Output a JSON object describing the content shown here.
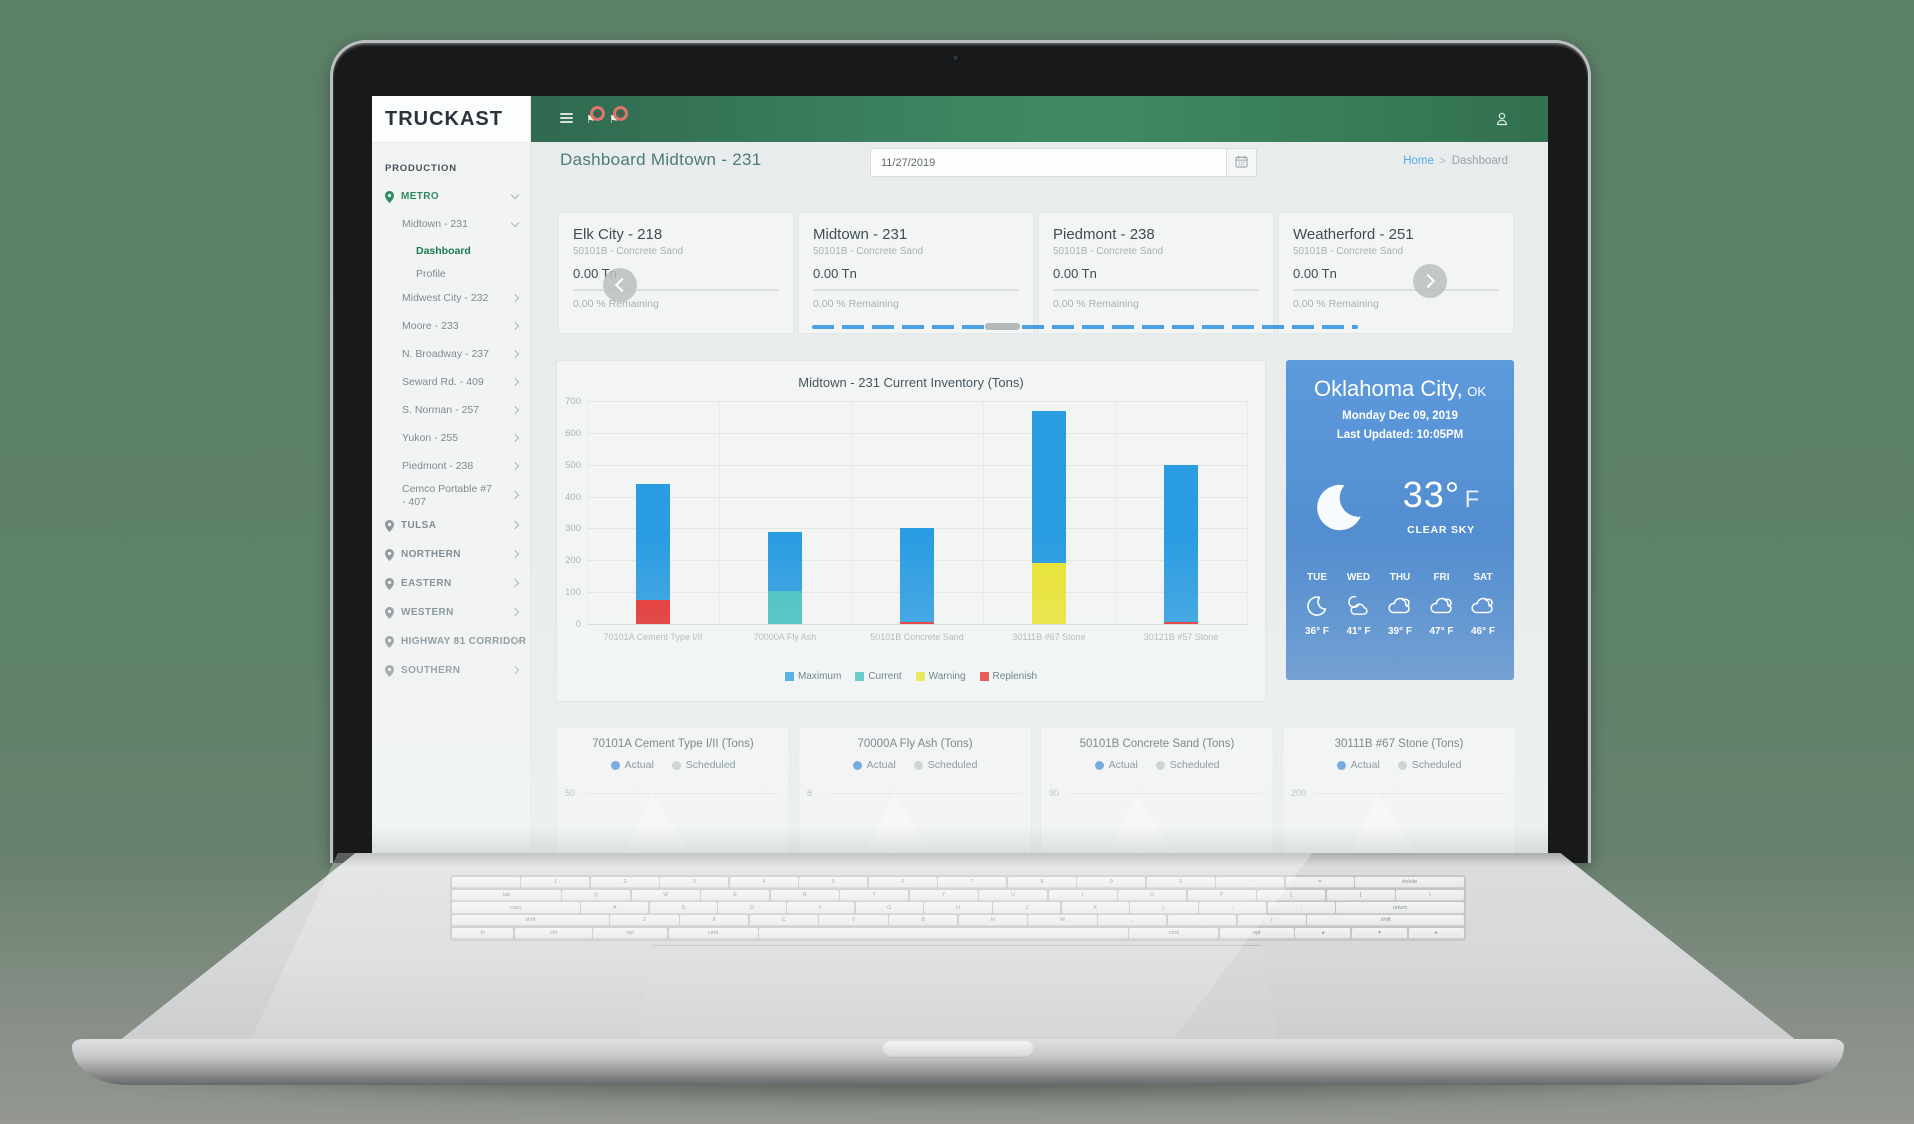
{
  "branding": {
    "logo": "TRUCKAST"
  },
  "header": {
    "menu_icon": "hamburger-icon",
    "badge_icons": [
      "flag-badge-icon",
      "flag-badge-icon"
    ],
    "user_icon": "user-icon"
  },
  "icons": {
    "hamburger": "≡",
    "flag": "⚑",
    "user": "👤",
    "calendar": "▦",
    "location_pin": "📍",
    "chevron_right": "›",
    "chevron_down": "⌄",
    "moon": "☾",
    "cloud": "☁"
  },
  "sidebar": {
    "section_label": "PRODUCTION",
    "items": [
      {
        "label": "METRO",
        "type": "region",
        "chevron": "down",
        "active": true
      },
      {
        "label": "Midtown - 231",
        "type": "site",
        "chevron": "down",
        "active": false
      },
      {
        "label": "Dashboard",
        "type": "subitem",
        "active": true
      },
      {
        "label": "Profile",
        "type": "subitem",
        "active": false
      },
      {
        "label": "Midwest City - 232",
        "type": "site",
        "chevron": "right",
        "active": false
      },
      {
        "label": "Moore - 233",
        "type": "site",
        "chevron": "right",
        "active": false
      },
      {
        "label": "N. Broadway - 237",
        "type": "site",
        "chevron": "right",
        "active": false
      },
      {
        "label": "Seward Rd. - 409",
        "type": "site",
        "chevron": "right",
        "active": false
      },
      {
        "label": "S. Norman - 257",
        "type": "site",
        "chevron": "right",
        "active": false
      },
      {
        "label": "Yukon - 255",
        "type": "site",
        "chevron": "right",
        "active": false
      },
      {
        "label": "Piedmont - 238",
        "type": "site",
        "chevron": "right",
        "active": false
      },
      {
        "label": "Cemco Portable #7 - 407",
        "type": "site",
        "chevron": "right",
        "active": false
      },
      {
        "label": "TULSA",
        "type": "region",
        "chevron": "right",
        "active": false
      },
      {
        "label": "NORTHERN",
        "type": "region",
        "chevron": "right",
        "active": false
      },
      {
        "label": "EASTERN",
        "type": "region",
        "chevron": "right",
        "active": false
      },
      {
        "label": "WESTERN",
        "type": "region",
        "chevron": "right",
        "active": false
      },
      {
        "label": "HIGHWAY 81 CORRIDOR",
        "type": "region",
        "chevron": "right",
        "active": false
      },
      {
        "label": "SOUTHERN",
        "type": "region",
        "chevron": "right",
        "active": false
      }
    ]
  },
  "page": {
    "title": "Dashboard Midtown - 231",
    "date_value": "11/27/2019",
    "breadcrumb": {
      "home": "Home",
      "separator": ">",
      "current": "Dashboard"
    }
  },
  "cards": [
    {
      "title": "Elk City - 218",
      "subtitle": "50101B - Concrete Sand",
      "amount": "0.00 Tn",
      "remaining": "0.00 % Remaining"
    },
    {
      "title": "Midtown - 231",
      "subtitle": "50101B - Concrete Sand",
      "amount": "0.00 Tn",
      "remaining": "0.00 % Remaining"
    },
    {
      "title": "Piedmont - 238",
      "subtitle": "50101B - Concrete Sand",
      "amount": "0.00 Tn",
      "remaining": "0.00 % Remaining"
    },
    {
      "title": "Weatherford - 251",
      "subtitle": "50101B - Concrete Sand",
      "amount": "0.00 Tn",
      "remaining": "0.00 % Remaining"
    }
  ],
  "chart_data": [
    {
      "type": "bar",
      "stacked": true,
      "title": "Midtown - 231 Current Inventory (Tons)",
      "categories": [
        "70101A Cement Type I/II",
        "70000A Fly Ash",
        "50101B Concrete Sand",
        "30111B #67 Stone",
        "30121B #57 Stone"
      ],
      "series": [
        {
          "name": "Maximum",
          "color": "#2a9ce1",
          "values": [
            365,
            185,
            295,
            480,
            495
          ]
        },
        {
          "name": "Current",
          "color": "#43bfc1",
          "values": [
            0,
            105,
            0,
            0,
            0
          ]
        },
        {
          "name": "Warning",
          "color": "#e8e334",
          "values": [
            0,
            0,
            0,
            190,
            0
          ]
        },
        {
          "name": "Replenish",
          "color": "#e12e2c",
          "values": [
            75,
            0,
            5,
            0,
            5
          ]
        }
      ],
      "bar_totals": [
        440,
        290,
        300,
        670,
        500
      ],
      "ylim": [
        0,
        700
      ],
      "yticks": [
        0,
        100,
        200,
        300,
        400,
        500,
        600,
        700
      ],
      "grid": true,
      "legend_position": "bottom"
    },
    {
      "type": "area",
      "title": "70101A Cement Type I/II (Tons)",
      "visible_ytick": "50",
      "series": [
        {
          "name": "Actual",
          "color": "#2d7fd3"
        },
        {
          "name": "Scheduled",
          "color": "#b7c1c5"
        }
      ]
    },
    {
      "type": "area",
      "title": "70000A Fly Ash (Tons)",
      "visible_ytick": "8",
      "series": [
        {
          "name": "Actual",
          "color": "#2d7fd3"
        },
        {
          "name": "Scheduled",
          "color": "#b7c1c5"
        }
      ]
    },
    {
      "type": "area",
      "title": "50101B Concrete Sand (Tons)",
      "visible_ytick": "90",
      "series": [
        {
          "name": "Actual",
          "color": "#2d7fd3"
        },
        {
          "name": "Scheduled",
          "color": "#b7c1c5"
        }
      ]
    },
    {
      "type": "area",
      "title": "30111B #67 Stone (Tons)",
      "visible_ytick": "200",
      "series": [
        {
          "name": "Actual",
          "color": "#2d7fd3"
        },
        {
          "name": "Scheduled",
          "color": "#b7c1c5"
        }
      ]
    }
  ],
  "weather": {
    "city": "Oklahoma City,",
    "state": "OK",
    "date_line": "Monday Dec 09, 2019",
    "updated_line": "Last Updated: 10:05PM",
    "temp_value": "33°",
    "temp_unit": "F",
    "condition": "CLEAR SKY",
    "condition_icon": "moon",
    "accent_color": "#548fd2",
    "forecast": [
      {
        "day": "TUE",
        "icon": "moon",
        "temp": "36° F"
      },
      {
        "day": "WED",
        "icon": "cloud-moon",
        "temp": "41° F"
      },
      {
        "day": "THU",
        "icon": "clouds",
        "temp": "39° F"
      },
      {
        "day": "FRI",
        "icon": "clouds",
        "temp": "47° F"
      },
      {
        "day": "SAT",
        "icon": "clouds",
        "temp": "46° F"
      }
    ]
  },
  "keyboard": {
    "rows": [
      [
        "`",
        "1",
        "2",
        "3",
        "4",
        "5",
        "6",
        "7",
        "8",
        "9",
        "0",
        "-",
        "=",
        "delete"
      ],
      [
        "tab",
        "Q",
        "W",
        "E",
        "R",
        "T",
        "Y",
        "U",
        "I",
        "O",
        "P",
        "[",
        "]",
        "\\"
      ],
      [
        "caps",
        "A",
        "S",
        "D",
        "F",
        "G",
        "H",
        "J",
        "K",
        "L",
        ";",
        "'",
        "return"
      ],
      [
        "shift",
        "Z",
        "X",
        "C",
        "V",
        "B",
        "N",
        "M",
        ",",
        ".",
        "/",
        "shift"
      ],
      [
        "fn",
        "ctrl",
        "opt",
        "cmd",
        "",
        "cmd",
        "opt",
        "◂",
        "▾",
        "▸"
      ]
    ]
  },
  "theme": {
    "header_green": "#3c8260",
    "sidebar_active_green": "#1b7a50",
    "title_teal": "#497d75",
    "link_blue": "#54a9e4",
    "scrollbar_blue": "#4aa0e2"
  }
}
